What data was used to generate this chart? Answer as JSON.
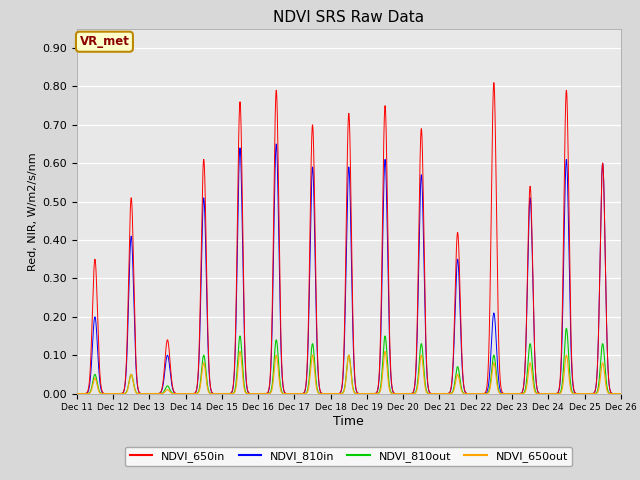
{
  "title": "NDVI SRS Raw Data",
  "xlabel": "Time",
  "ylabel": "Red, NIR, W/m2/s/nm",
  "ylim": [
    0.0,
    0.95
  ],
  "yticks": [
    0.0,
    0.1,
    0.2,
    0.3,
    0.4,
    0.5,
    0.6,
    0.7,
    0.8,
    0.9
  ],
  "colors": {
    "NDVI_650in": "#FF0000",
    "NDVI_810in": "#0000FF",
    "NDVI_810out": "#00CC00",
    "NDVI_650out": "#FFA500"
  },
  "annotation_text": "VR_met",
  "fig_bg": "#D8D8D8",
  "ax_bg": "#E8E8E8",
  "peak_days": [
    0,
    1,
    2,
    3,
    4,
    5,
    6,
    7,
    8,
    9,
    10,
    11,
    12,
    13,
    14
  ],
  "peak_values_650in": [
    0.35,
    0.51,
    0.14,
    0.61,
    0.76,
    0.79,
    0.7,
    0.73,
    0.75,
    0.69,
    0.42,
    0.81,
    0.54,
    0.79,
    0.6
  ],
  "peak_values_810in": [
    0.2,
    0.41,
    0.1,
    0.51,
    0.64,
    0.65,
    0.59,
    0.59,
    0.61,
    0.57,
    0.35,
    0.21,
    0.51,
    0.61,
    0.6
  ],
  "peak_values_810out": [
    0.05,
    0.05,
    0.02,
    0.1,
    0.15,
    0.14,
    0.13,
    0.1,
    0.15,
    0.13,
    0.07,
    0.1,
    0.13,
    0.17,
    0.13
  ],
  "peak_values_650out": [
    0.04,
    0.05,
    0.01,
    0.08,
    0.11,
    0.1,
    0.1,
    0.1,
    0.11,
    0.1,
    0.05,
    0.08,
    0.08,
    0.1,
    0.08
  ],
  "sigma": 0.07,
  "legend_entries": [
    "NDVI_650in",
    "NDVI_810in",
    "NDVI_810out",
    "NDVI_650out"
  ],
  "legend_colors": [
    "#FF0000",
    "#0000FF",
    "#00CC00",
    "#FFA500"
  ],
  "xtick_labels": [
    "Dec 11",
    "Dec 12",
    "Dec 13",
    "Dec 14",
    "Dec 15",
    "Dec 16",
    "Dec 17",
    "Dec 18",
    "Dec 19",
    "Dec 20",
    "Dec 21",
    "Dec 22",
    "Dec 23",
    "Dec 24",
    "Dec 25",
    "Dec 26"
  ]
}
